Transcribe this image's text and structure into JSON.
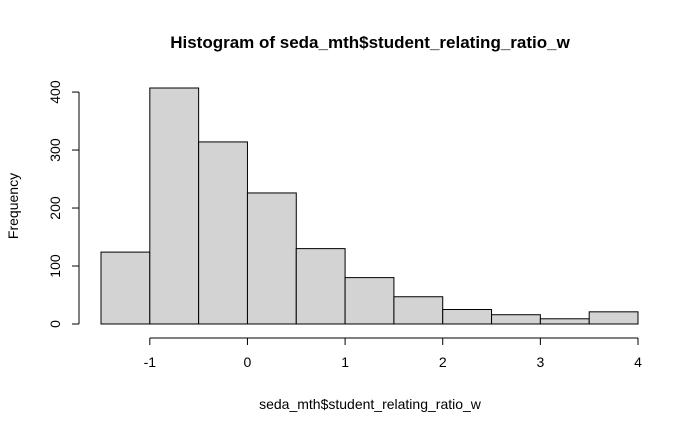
{
  "chart_data": {
    "type": "bar",
    "title": "Histogram of seda_mth$student_relating_ratio_w",
    "xlabel": "seda_mth$student_relating_ratio_w",
    "ylabel": "Frequency",
    "bins": [
      {
        "start": -1.5,
        "end": -1.0,
        "count": 124
      },
      {
        "start": -1.0,
        "end": -0.5,
        "count": 407
      },
      {
        "start": -0.5,
        "end": 0.0,
        "count": 314
      },
      {
        "start": 0.0,
        "end": 0.5,
        "count": 226
      },
      {
        "start": 0.5,
        "end": 1.0,
        "count": 130
      },
      {
        "start": 1.0,
        "end": 1.5,
        "count": 80
      },
      {
        "start": 1.5,
        "end": 2.0,
        "count": 47
      },
      {
        "start": 2.0,
        "end": 2.5,
        "count": 25
      },
      {
        "start": 2.5,
        "end": 3.0,
        "count": 16
      },
      {
        "start": 3.0,
        "end": 3.5,
        "count": 9
      },
      {
        "start": 3.5,
        "end": 4.0,
        "count": 21
      }
    ],
    "xlim": [
      -1.5,
      4.0
    ],
    "ylim": [
      0,
      407
    ],
    "xticks": [
      -1,
      0,
      1,
      2,
      3,
      4
    ],
    "xtick_labels": [
      "-1",
      "0",
      "1",
      "2",
      "3",
      "4"
    ],
    "yticks": [
      0,
      100,
      200,
      300,
      400
    ],
    "ytick_labels": [
      "0",
      "100",
      "200",
      "300",
      "400"
    ],
    "bar_color": "#d3d3d3",
    "border_color": "#000000",
    "grid": false,
    "legend": "none"
  }
}
